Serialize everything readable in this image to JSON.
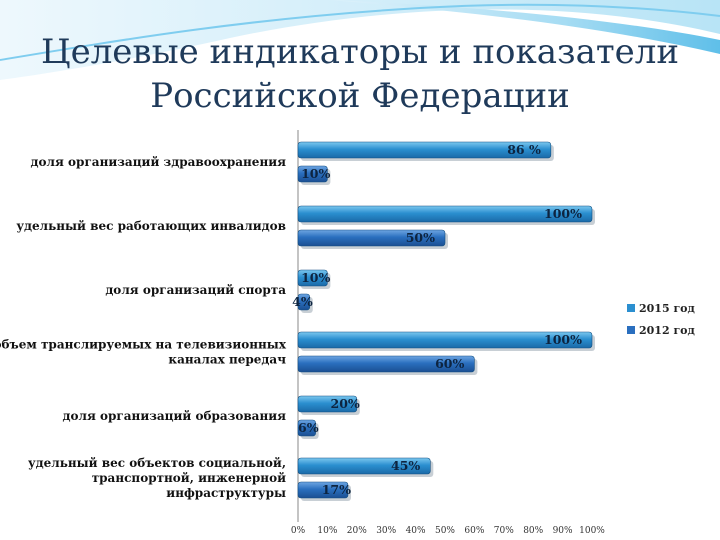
{
  "slide": {
    "title_line1": "Целевые индикаторы и показатели",
    "title_line2": "Российской Федерации"
  },
  "chart_data": {
    "type": "bar",
    "orientation": "horizontal",
    "title": "",
    "xlabel": "",
    "ylabel": "",
    "xlim": [
      0,
      100
    ],
    "x_ticks": [
      "0%",
      "10%",
      "20%",
      "30%",
      "40%",
      "50%",
      "60%",
      "70%",
      "80%",
      "90%",
      "100%"
    ],
    "categories": [
      "доля организаций здравоохранения",
      "удельный вес работающих инвалидов",
      "доля организаций спорта",
      "объем транслируемых на телевизионных каналах передач",
      "доля организаций образования",
      "удельный вес объектов социальной, транспортной, инженерной инфраструктуры"
    ],
    "category_lines": [
      [
        "доля организаций здравоохранения"
      ],
      [
        "удельный вес работающих инвалидов"
      ],
      [
        "доля организаций спорта"
      ],
      [
        "объем транслируемых на телевизионных",
        "каналах передач"
      ],
      [
        "доля организаций образования"
      ],
      [
        "удельный вес объектов социальной,",
        "транспортной, инженерной",
        "инфраструктуры"
      ]
    ],
    "series": [
      {
        "name": "2015 год",
        "values": [
          86,
          100,
          10,
          100,
          20,
          45
        ],
        "labels": [
          "86 %",
          "100%",
          "10%",
          "100%",
          "20%",
          "45%"
        ],
        "color": "#2b8fd0"
      },
      {
        "name": "2012 год",
        "values": [
          10,
          50,
          4,
          60,
          6,
          17
        ],
        "labels": [
          "10%",
          "50%",
          "4%",
          "60%",
          "6%",
          "17%"
        ],
        "color": "#2a6fbf"
      }
    ],
    "legend_position": "right",
    "grid": false
  }
}
